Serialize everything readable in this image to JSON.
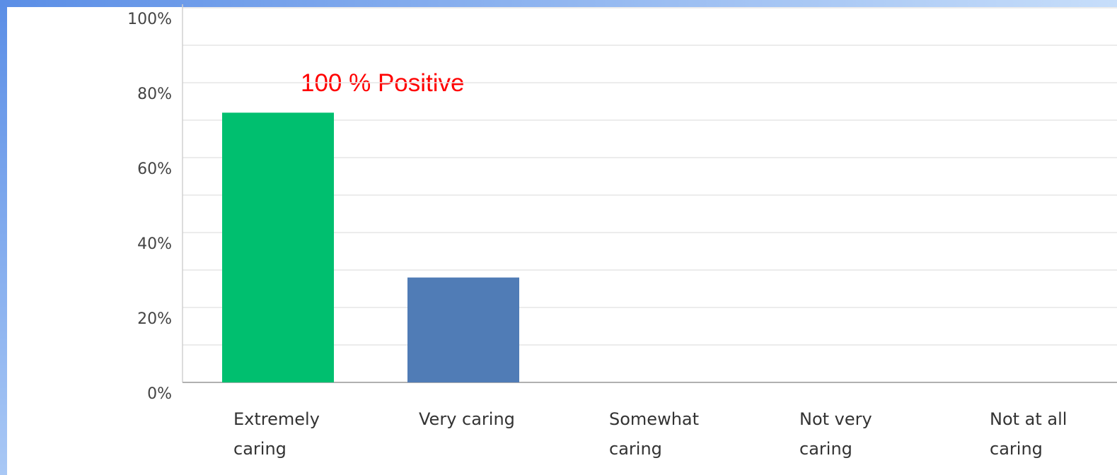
{
  "chart_data": {
    "type": "bar",
    "categories": [
      "Extremely caring",
      "Very caring",
      "Somewhat caring",
      "Not very caring",
      "Not at all caring"
    ],
    "values": [
      72,
      28,
      0,
      0,
      0
    ],
    "colors": [
      "#00bf6f",
      "#507cb6",
      "#507cb6",
      "#507cb6",
      "#507cb6"
    ],
    "ylim": [
      0,
      100
    ],
    "yticks": [
      {
        "value": 0,
        "label": "0%"
      },
      {
        "value": 20,
        "label": "20%"
      },
      {
        "value": 40,
        "label": "40%"
      },
      {
        "value": 60,
        "label": "60%"
      },
      {
        "value": 80,
        "label": "80%"
      },
      {
        "value": 100,
        "label": "100%"
      }
    ],
    "minor_yticks": [
      10,
      30,
      50,
      70,
      90
    ],
    "grid": true,
    "annotation": "100 % Positive"
  }
}
